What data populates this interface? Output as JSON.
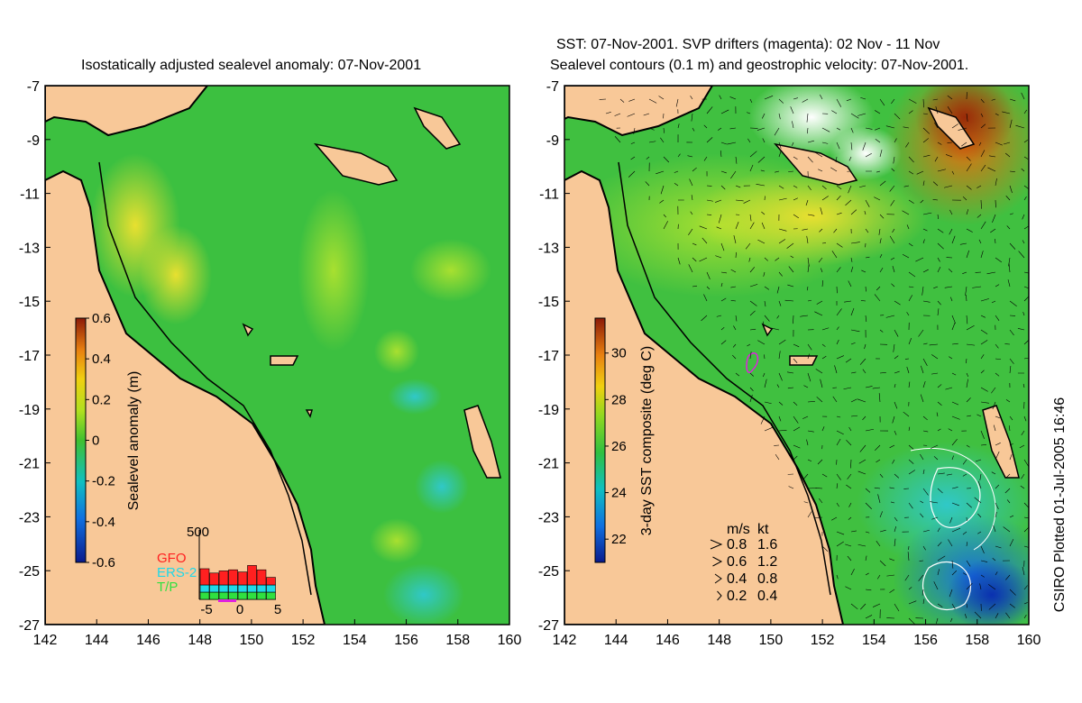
{
  "left_panel": {
    "title": "Isostatically adjusted sealevel anomaly: 07-Nov-2001",
    "x_ticks": [
      "142",
      "144",
      "146",
      "148",
      "150",
      "152",
      "154",
      "156",
      "158",
      "160"
    ],
    "y_ticks": [
      "-7",
      "-9",
      "-11",
      "-13",
      "-15",
      "-17",
      "-19",
      "-21",
      "-23",
      "-25",
      "-27"
    ],
    "colorbar": {
      "label": "Sealevel anomaly (m)",
      "ticks": [
        "0.6",
        "0.4",
        "0.2",
        "0",
        "-0.2",
        "-0.4",
        "-0.6"
      ],
      "range": [
        -0.6,
        0.6
      ]
    },
    "inset": {
      "y_max_label": "500",
      "x_ticks": [
        "-5",
        "0",
        "5"
      ],
      "legend": [
        {
          "label": "GFO",
          "color": "#ff2020"
        },
        {
          "label": "ERS-2",
          "color": "#20d8e8"
        },
        {
          "label": "T/P",
          "color": "#30e040"
        }
      ]
    }
  },
  "right_panel": {
    "title_line1": "SST: 07-Nov-2001. SVP drifters (magenta): 02 Nov - 11 Nov",
    "title_line2": "Sealevel contours (0.1 m) and geostrophic velocity: 07-Nov-2001.",
    "x_ticks": [
      "142",
      "144",
      "146",
      "148",
      "150",
      "152",
      "154",
      "156",
      "158",
      "160"
    ],
    "y_ticks": [
      "-7",
      "-9",
      "-11",
      "-13",
      "-15",
      "-17",
      "-19",
      "-21",
      "-23",
      "-25",
      "-27"
    ],
    "colorbar": {
      "label": "3-day SST composite (deg C)",
      "ticks": [
        "30",
        "28",
        "26",
        "24",
        "22"
      ],
      "range": [
        21,
        31.5
      ]
    },
    "velocity_legend": {
      "header_ms": "m/s",
      "header_kt": "kt",
      "rows": [
        {
          "ms": "0.8",
          "kt": "1.6"
        },
        {
          "ms": "0.6",
          "kt": "1.2"
        },
        {
          "ms": "0.4",
          "kt": "0.8"
        },
        {
          "ms": "0.2",
          "kt": "0.4"
        }
      ]
    }
  },
  "credit": "CSIRO Plotted 01-Jul-2005 16:46",
  "colors": {
    "land": "#f8c898",
    "sea_green": "#3cc040",
    "coast": "#000000"
  }
}
